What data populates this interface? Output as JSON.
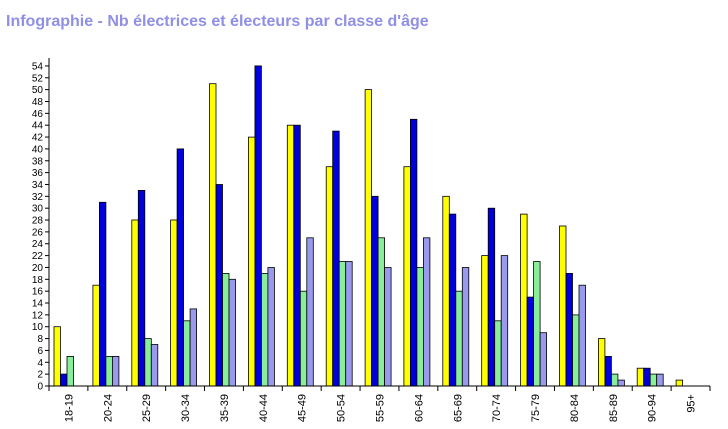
{
  "header": {
    "title": "Infographie - Nb électrices et électeurs par classe d'âge"
  },
  "colors": {
    "s1": "#ffff00",
    "s2": "#0000dd",
    "s3": "#88ee99",
    "s4": "#9999ee"
  },
  "chart_data": {
    "type": "bar",
    "title": "Infographie - Nb électrices et électeurs par classe d'âge",
    "xlabel": "",
    "ylabel": "",
    "ylim": [
      0,
      55
    ],
    "y_ticks": [
      0,
      2,
      4,
      6,
      8,
      10,
      12,
      14,
      16,
      18,
      20,
      22,
      24,
      26,
      28,
      30,
      32,
      34,
      36,
      38,
      40,
      42,
      44,
      46,
      48,
      50,
      52,
      54
    ],
    "grid": false,
    "legend": "none",
    "categories": [
      "18-19",
      "20-24",
      "25-29",
      "30-34",
      "35-39",
      "40-44",
      "45-49",
      "50-54",
      "55-59",
      "60-64",
      "65-69",
      "70-74",
      "75-79",
      "80-84",
      "85-89",
      "90-94",
      "95+"
    ],
    "series": [
      {
        "color": "#ffff00",
        "values": [
          10,
          17,
          28,
          28,
          51,
          42,
          44,
          37,
          50,
          37,
          32,
          22,
          29,
          27,
          8,
          3,
          1
        ]
      },
      {
        "color": "#0000dd",
        "values": [
          2,
          31,
          33,
          40,
          34,
          54,
          44,
          43,
          32,
          45,
          29,
          30,
          15,
          19,
          5,
          3,
          0
        ]
      },
      {
        "color": "#88ee99",
        "values": [
          5,
          5,
          8,
          11,
          19,
          19,
          16,
          21,
          25,
          20,
          16,
          11,
          21,
          12,
          2,
          2,
          0
        ]
      },
      {
        "color": "#9999ee",
        "values": [
          0,
          5,
          7,
          13,
          18,
          20,
          25,
          21,
          20,
          25,
          20,
          22,
          9,
          17,
          1,
          2,
          0
        ]
      }
    ]
  }
}
